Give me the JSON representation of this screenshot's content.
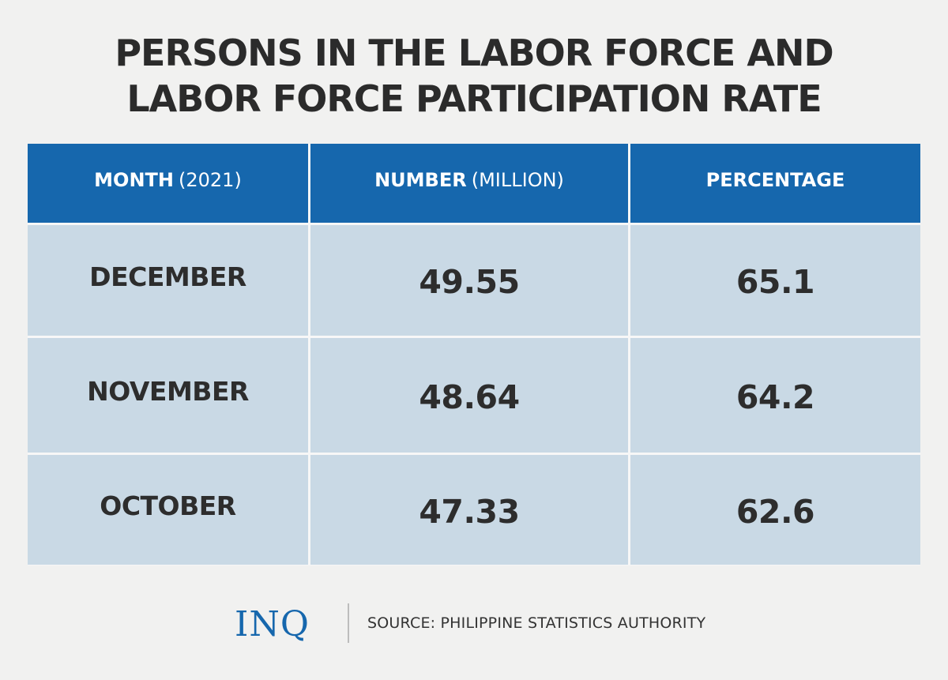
{
  "title": {
    "line1": "PERSONS IN THE LABOR FORCE AND",
    "line2": "LABOR FORCE PARTICIPATION RATE"
  },
  "chart_data": {
    "type": "table",
    "title": "PERSONS IN THE LABOR FORCE AND LABOR FORCE PARTICIPATION RATE",
    "columns": [
      {
        "main": "MONTH",
        "sub": "(2021)"
      },
      {
        "main": "NUMBER",
        "sub": "(MILLION)"
      },
      {
        "main": "PERCENTAGE",
        "sub": ""
      }
    ],
    "rows": [
      {
        "month": "DECEMBER",
        "number": "49.55",
        "percentage": "65.1"
      },
      {
        "month": "NOVEMBER",
        "number": "48.64",
        "percentage": "64.2"
      },
      {
        "month": "OCTOBER",
        "number": "47.33",
        "percentage": "62.6"
      }
    ]
  },
  "footer": {
    "logo": "INQ",
    "source": "SOURCE: PHILIPPINE STATISTICS AUTHORITY"
  },
  "colors": {
    "header_bg": "#1667ad",
    "row_bg": "#c9d9e5",
    "page_bg": "#f1f1f0",
    "text": "#2d2d2d"
  }
}
